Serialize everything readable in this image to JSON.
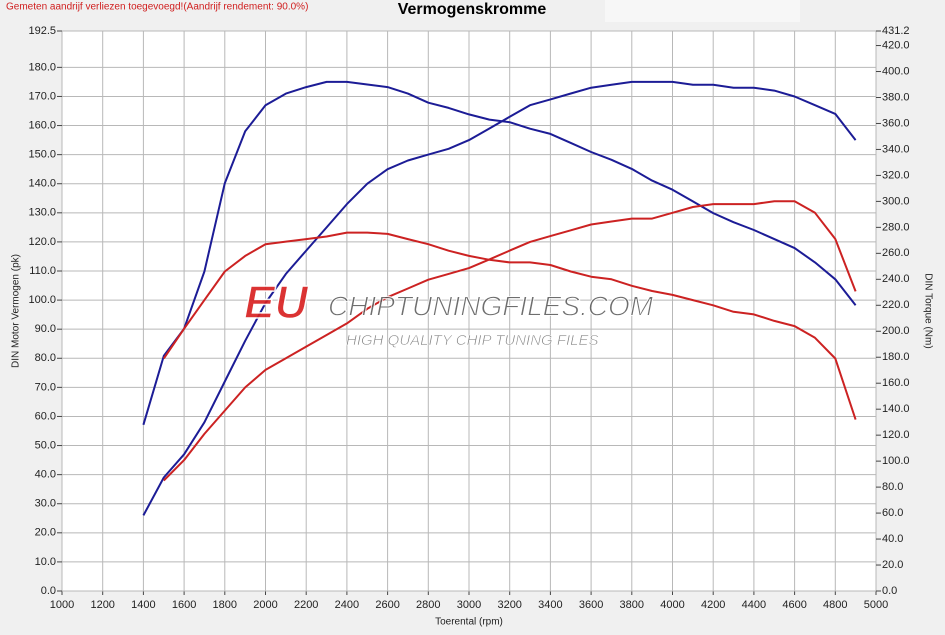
{
  "chart_data": {
    "type": "line",
    "title": "Vermogenskromme",
    "subtitle": "Gemeten aandrijf verliezen toegevoegd!(Aandrijf rendement: 90.0%)",
    "xlabel": "Toerental (rpm)",
    "ylabel": "DIN Motor Vermogen (pk)",
    "y2label": "DIN Torque (Nm)",
    "watermark": [
      "EU",
      "CHIPTUNINGFILES.COM",
      "HIGH QUALITY CHIP TUNING FILES"
    ],
    "grid": true,
    "x": [
      1400,
      1500,
      1600,
      1700,
      1800,
      1900,
      2000,
      2100,
      2200,
      2300,
      2400,
      2500,
      2600,
      2700,
      2800,
      2900,
      3000,
      3100,
      3200,
      3300,
      3400,
      3500,
      3600,
      3700,
      3800,
      3900,
      4000,
      4100,
      4200,
      4300,
      4400,
      4500,
      4600,
      4700,
      4800,
      4900
    ],
    "xlim": [
      1000,
      5000
    ],
    "xticks": [
      1000,
      1200,
      1400,
      1600,
      1800,
      2000,
      2200,
      2400,
      2600,
      2800,
      3000,
      3200,
      3400,
      3600,
      3800,
      4000,
      4200,
      4400,
      4600,
      4800,
      5000
    ],
    "ylim": [
      0,
      192.5
    ],
    "yticks": [
      {
        "value": 0,
        "label": "0.0"
      },
      {
        "value": 10,
        "label": "10.0"
      },
      {
        "value": 20,
        "label": "20.0"
      },
      {
        "value": 30,
        "label": "30.0"
      },
      {
        "value": 40,
        "label": "40.0"
      },
      {
        "value": 50,
        "label": "50.0"
      },
      {
        "value": 60,
        "label": "60.0"
      },
      {
        "value": 70,
        "label": "70.0"
      },
      {
        "value": 80,
        "label": "80.0"
      },
      {
        "value": 90,
        "label": "90.0"
      },
      {
        "value": 100,
        "label": "100.0"
      },
      {
        "value": 110,
        "label": "110.0"
      },
      {
        "value": 120,
        "label": "120.0"
      },
      {
        "value": 130,
        "label": "130.0"
      },
      {
        "value": 140,
        "label": "140.0"
      },
      {
        "value": 150,
        "label": "150.0"
      },
      {
        "value": 160,
        "label": "160.0"
      },
      {
        "value": 170,
        "label": "170.0"
      },
      {
        "value": 180,
        "label": "180.0"
      },
      192.5
    ],
    "y2lim": [
      0,
      431.2
    ],
    "y2ticks": [
      {
        "value": 0,
        "label": "0.0"
      },
      {
        "value": 20,
        "label": "20.0"
      },
      {
        "value": 40,
        "label": "40.0"
      },
      {
        "value": 60,
        "label": "60.0"
      },
      {
        "value": 80,
        "label": "80.0"
      },
      {
        "value": 100,
        "label": "100.0"
      },
      {
        "value": 120,
        "label": "120.0"
      },
      {
        "value": 140,
        "label": "140.0"
      },
      {
        "value": 160,
        "label": "160.0"
      },
      {
        "value": 180,
        "label": "180.0"
      },
      {
        "value": 200,
        "label": "200.0"
      },
      {
        "value": 220,
        "label": "220.0"
      },
      {
        "value": 240,
        "label": "240.0"
      },
      {
        "value": 260,
        "label": "260.0"
      },
      {
        "value": 280,
        "label": "280.0"
      },
      {
        "value": 300,
        "label": "300.0"
      },
      {
        "value": 320,
        "label": "320.0"
      },
      {
        "value": 340,
        "label": "340.0"
      },
      {
        "value": 360,
        "label": "360.0"
      },
      {
        "value": 380,
        "label": "380.0"
      },
      {
        "value": 400,
        "label": "400.0"
      },
      {
        "value": 420,
        "label": "420.0"
      },
      431.2
    ],
    "series": [
      {
        "color": "#1c1c96",
        "axis": "y2",
        "values": [
          128,
          181,
          202,
          246,
          314,
          354,
          374,
          383,
          388,
          392,
          392,
          390,
          388,
          383,
          376,
          372,
          367,
          363,
          361,
          356,
          352,
          345,
          338,
          332,
          325,
          316,
          309,
          300,
          291,
          284,
          278,
          271,
          264,
          253,
          240,
          220
        ]
      },
      {
        "color": "#1c1c96",
        "values": [
          26,
          39,
          47,
          58,
          72,
          86,
          99,
          109,
          117,
          125,
          133,
          140,
          145,
          148,
          150,
          152,
          155,
          159,
          163,
          167,
          169,
          171,
          173,
          174,
          175,
          175,
          175,
          174,
          174,
          173,
          173,
          172,
          170,
          167,
          164,
          155
        ]
      },
      {
        "color": "#cc2222",
        "axis": "y2",
        "values": [
          null,
          179,
          202,
          224,
          246,
          258,
          267,
          269,
          271,
          273,
          276,
          276,
          275,
          271,
          267,
          262,
          258,
          255,
          253,
          253,
          251,
          246,
          242,
          240,
          235,
          231,
          228,
          224,
          220,
          215,
          213,
          208,
          204,
          195,
          179,
          132
        ]
      },
      {
        "color": "#cc2222",
        "values": [
          null,
          38,
          45,
          54,
          62,
          70,
          76,
          80,
          84,
          88,
          92,
          97,
          101,
          104,
          107,
          109,
          111,
          114,
          117,
          120,
          122,
          124,
          126,
          127,
          128,
          128,
          130,
          132,
          133,
          133,
          133,
          134,
          134,
          130,
          121,
          103
        ]
      }
    ]
  }
}
